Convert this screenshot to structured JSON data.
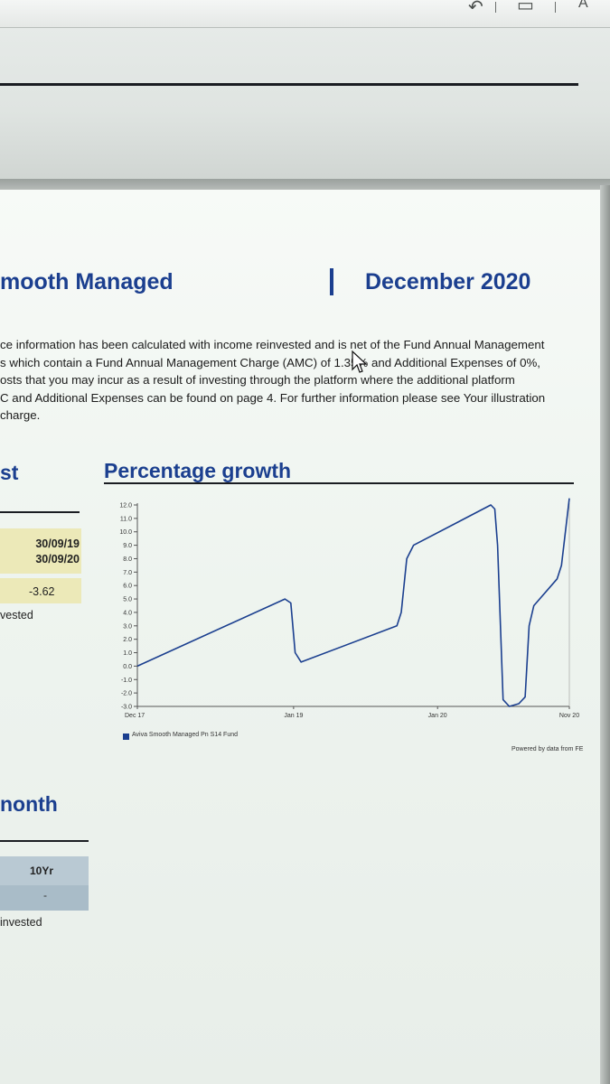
{
  "toolbar": {
    "right_text": "A"
  },
  "header": {
    "fund_name": "mooth Managed",
    "date": "December 2020"
  },
  "intro_lines": [
    "ce information has been calculated with income reinvested and is net of the Fund Annual Management",
    "s which contain a Fund Annual Management Charge (AMC) of 1.35% and Additional Expenses of 0%,",
    "osts that you may incur as a result of investing through the platform where the additional platform",
    "C and Additional Expenses can be found on page 4. For further information please see Your illustration",
    "charge."
  ],
  "left_panel": {
    "section_title": "st",
    "date_from": "30/09/19",
    "date_to": "30/09/20",
    "value": "-3.62",
    "note": "vested",
    "month_title": "nonth",
    "column_10yr": "10Yr",
    "value_10yr": "-",
    "note_2": "invested"
  },
  "chart_data": {
    "type": "line",
    "title": "Percentage growth",
    "xlabel": "",
    "ylabel": "",
    "ylim": [
      -3.0,
      12.0
    ],
    "yticks": [
      "12.0",
      "11.0",
      "10.0",
      "9.0",
      "8.0",
      "7.0",
      "6.0",
      "5.0",
      "4.0",
      "3.0",
      "2.0",
      "1.0",
      "0.0",
      "-1.0",
      "-2.0",
      "-3.0"
    ],
    "xticks": [
      "Dec 17",
      "Jan 19",
      "Jan 20",
      "Nov 20"
    ],
    "x_range": [
      "2017-12-01",
      "2020-11-30"
    ],
    "grid": false,
    "legend_position": "bottom-left",
    "line_color": "#1b3f8f",
    "series": [
      {
        "name": "Aviva Smooth Managed Pn S14 Fund",
        "points": [
          {
            "x": "2017-12-01",
            "y": 0.0
          },
          {
            "x": "2018-12-10",
            "y": 5.0
          },
          {
            "x": "2018-12-25",
            "y": 4.7
          },
          {
            "x": "2019-01-05",
            "y": 1.0
          },
          {
            "x": "2019-01-20",
            "y": 0.3
          },
          {
            "x": "2019-09-20",
            "y": 3.0
          },
          {
            "x": "2019-10-01",
            "y": 4.0
          },
          {
            "x": "2019-10-15",
            "y": 8.0
          },
          {
            "x": "2019-11-01",
            "y": 9.0
          },
          {
            "x": "2020-05-15",
            "y": 12.0
          },
          {
            "x": "2020-05-25",
            "y": 11.7
          },
          {
            "x": "2020-06-01",
            "y": 9.0
          },
          {
            "x": "2020-06-15",
            "y": -2.5
          },
          {
            "x": "2020-07-01",
            "y": -3.0
          },
          {
            "x": "2020-07-25",
            "y": -2.8
          },
          {
            "x": "2020-08-10",
            "y": -2.3
          },
          {
            "x": "2020-08-20",
            "y": 3.0
          },
          {
            "x": "2020-09-01",
            "y": 4.5
          },
          {
            "x": "2020-10-30",
            "y": 6.5
          },
          {
            "x": "2020-11-10",
            "y": 7.5
          },
          {
            "x": "2020-11-30",
            "y": 12.5
          }
        ]
      }
    ],
    "powered_by": "Powered by data from FE"
  }
}
